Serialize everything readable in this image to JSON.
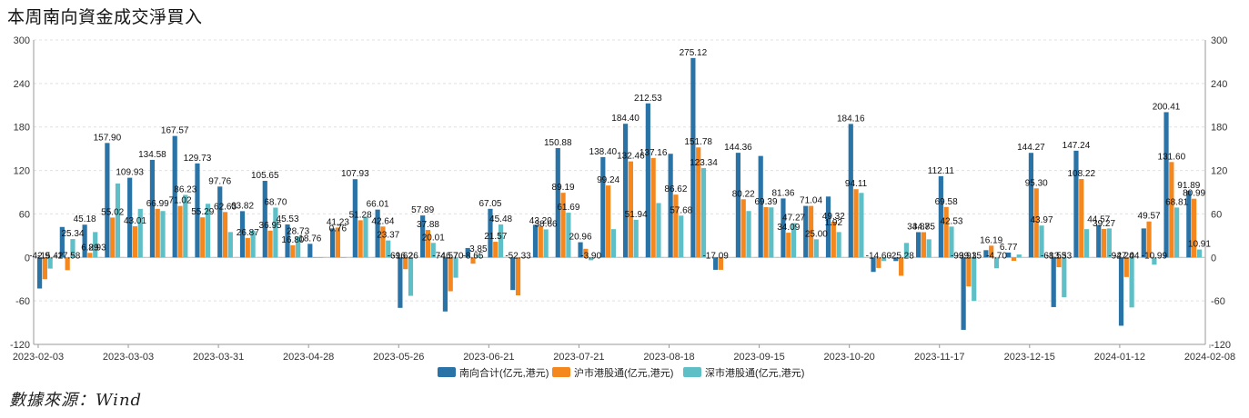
{
  "title": "本周南向資金成交淨買入",
  "source": "數據來源：Wind",
  "colors": {
    "south_total": "#2a73a6",
    "sh_connect": "#f5871f",
    "sz_connect": "#5ec0c6"
  },
  "chart_data": {
    "type": "bar",
    "title": "本周南向資金成交淨買入",
    "ylim": [
      -120,
      300
    ],
    "yticks": [
      -120,
      -60,
      0,
      60,
      120,
      180,
      240,
      300
    ],
    "grid": true,
    "legend_position": "bottom",
    "xtick_labels": [
      "2023-02-03",
      "2023-03-03",
      "2023-03-31",
      "2023-04-28",
      "2023-05-26",
      "2023-06-21",
      "2023-07-21",
      "2023-08-18",
      "2023-09-15",
      "2023-10-20",
      "2023-11-17",
      "2023-12-15",
      "2024-01-12",
      "2024-02-08"
    ],
    "xtick_index": [
      0,
      4,
      8,
      12,
      16,
      20,
      24,
      28,
      32,
      36,
      40,
      44,
      48,
      52
    ],
    "series": [
      {
        "name": "南向合计(亿元,港元)",
        "color": "#2a73a6",
        "values": [
          -42.9,
          42.0,
          45.18,
          157.9,
          109.93,
          134.58,
          167.57,
          129.73,
          97.76,
          63.82,
          105.65,
          45.53,
          18.76,
          40.0,
          107.93,
          66.01,
          -69.62,
          57.89,
          -74.57,
          13.0,
          67.05,
          -45.0,
          45.0,
          150.88,
          20.96,
          138.4,
          184.4,
          212.53,
          143.0,
          275.12,
          -17.09,
          144.36,
          140.0,
          81.36,
          71.04,
          84.0,
          184.16,
          -20.0,
          -5.0,
          34.87,
          112.11,
          -99.91,
          10.0,
          6.77,
          144.27,
          -68.53,
          147.24,
          44.57,
          -94.24,
          40.0,
          200.41,
          91.89
        ]
      },
      {
        "name": "沪市港股通(亿元,港元)",
        "color": "#f5871f",
        "values": [
          -30.0,
          -17.58,
          6.29,
          55.02,
          43.01,
          66.99,
          71.02,
          55.29,
          62.63,
          26.87,
          36.95,
          16.8,
          0.0,
          41.23,
          51.28,
          42.64,
          -16.26,
          37.88,
          -46.7,
          -8.65,
          21.57,
          -52.33,
          43.2,
          89.19,
          11.9,
          99.24,
          132.46,
          137.16,
          86.62,
          151.78,
          -17.09,
          80.22,
          69.39,
          34.09,
          71.04,
          49.32,
          94.11,
          -14.6,
          -25.28,
          34.85,
          69.58,
          -40.0,
          16.19,
          -4.7,
          95.3,
          -13.53,
          108.22,
          39.27,
          -27.04,
          49.57,
          131.6,
          80.99
        ]
      },
      {
        "name": "深市港股通(亿元,港元)",
        "color": "#5ec0c6",
        "values": [
          -15.42,
          25.34,
          35.0,
          102.0,
          66.99,
          64.0,
          86.23,
          74.0,
          35.0,
          37.0,
          68.7,
          28.73,
          0.0,
          0.0,
          56.0,
          23.37,
          -53.0,
          20.01,
          -28.0,
          3.85,
          45.48,
          0.0,
          38.66,
          61.69,
          -3.9,
          39.0,
          51.94,
          75.0,
          57.68,
          123.34,
          0.0,
          64.0,
          69.0,
          47.27,
          25.0,
          35.0,
          89.0,
          -5.0,
          20.0,
          25.0,
          42.53,
          -60.0,
          -15.0,
          4.0,
          43.97,
          -55.0,
          39.0,
          40.0,
          -69.0,
          -10.0,
          68.81,
          10.91
        ]
      }
    ],
    "data_labels": [
      {
        "s": 0,
        "i": 0,
        "text": "-42.9"
      },
      {
        "s": 2,
        "i": 0,
        "text": "-15.42"
      },
      {
        "s": 1,
        "i": 1,
        "text": "-17.58"
      },
      {
        "s": 2,
        "i": 1,
        "text": "25.34"
      },
      {
        "s": 1,
        "i": 2,
        "text": "6.29"
      },
      {
        "s": 0,
        "i": 2,
        "text": "45.18"
      },
      {
        "s": 1,
        "i": 2,
        "text": "8.93",
        "dx": 8
      },
      {
        "s": 0,
        "i": 3,
        "text": "157.90"
      },
      {
        "s": 1,
        "i": 3,
        "text": "55.02"
      },
      {
        "s": 0,
        "i": 4,
        "text": "109.93"
      },
      {
        "s": 1,
        "i": 4,
        "text": "43.01"
      },
      {
        "s": 0,
        "i": 5,
        "text": "134.58"
      },
      {
        "s": 1,
        "i": 5,
        "text": "66.99"
      },
      {
        "s": 0,
        "i": 6,
        "text": "167.57"
      },
      {
        "s": 1,
        "i": 6,
        "text": "71.02"
      },
      {
        "s": 2,
        "i": 6,
        "text": "86.23"
      },
      {
        "s": 0,
        "i": 7,
        "text": "129.73"
      },
      {
        "s": 1,
        "i": 7,
        "text": "55.29"
      },
      {
        "s": 0,
        "i": 8,
        "text": "97.76"
      },
      {
        "s": 1,
        "i": 8,
        "text": "62.63"
      },
      {
        "s": 0,
        "i": 9,
        "text": "63.82"
      },
      {
        "s": 1,
        "i": 9,
        "text": "26.87"
      },
      {
        "s": 0,
        "i": 10,
        "text": "105.65"
      },
      {
        "s": 1,
        "i": 10,
        "text": "36.95"
      },
      {
        "s": 2,
        "i": 10,
        "text": "68.70"
      },
      {
        "s": 0,
        "i": 11,
        "text": "45.53"
      },
      {
        "s": 1,
        "i": 11,
        "text": "16.80"
      },
      {
        "s": 2,
        "i": 11,
        "text": "28.73"
      },
      {
        "s": 0,
        "i": 12,
        "text": "18.76"
      },
      {
        "s": 1,
        "i": 13,
        "text": "41.23"
      },
      {
        "s": 1,
        "i": 13,
        "text": "0.76",
        "below": true
      },
      {
        "s": 0,
        "i": 14,
        "text": "107.93"
      },
      {
        "s": 1,
        "i": 14,
        "text": "51.28"
      },
      {
        "s": 0,
        "i": 15,
        "text": "66.01"
      },
      {
        "s": 1,
        "i": 15,
        "text": "42.64"
      },
      {
        "s": 2,
        "i": 15,
        "text": "23.37"
      },
      {
        "s": 0,
        "i": 16,
        "text": "-69.62"
      },
      {
        "s": 1,
        "i": 16,
        "text": "-16.26"
      },
      {
        "s": 0,
        "i": 17,
        "text": "57.89"
      },
      {
        "s": 1,
        "i": 17,
        "text": "37.88"
      },
      {
        "s": 2,
        "i": 17,
        "text": "20.01"
      },
      {
        "s": 0,
        "i": 18,
        "text": "-74.57"
      },
      {
        "s": 1,
        "i": 18,
        "text": "-46.70"
      },
      {
        "s": 2,
        "i": 19,
        "text": "3.85"
      },
      {
        "s": 1,
        "i": 19,
        "text": "-8.65"
      },
      {
        "s": 0,
        "i": 20,
        "text": "67.05"
      },
      {
        "s": 1,
        "i": 20,
        "text": "21.57"
      },
      {
        "s": 2,
        "i": 20,
        "text": "45.48"
      },
      {
        "s": 1,
        "i": 21,
        "text": "-52.33"
      },
      {
        "s": 1,
        "i": 22,
        "text": "43.20"
      },
      {
        "s": 2,
        "i": 22,
        "text": "38.66"
      },
      {
        "s": 0,
        "i": 23,
        "text": "150.88"
      },
      {
        "s": 1,
        "i": 23,
        "text": "89.19"
      },
      {
        "s": 2,
        "i": 23,
        "text": "61.69"
      },
      {
        "s": 0,
        "i": 24,
        "text": "20.96"
      },
      {
        "s": 2,
        "i": 24,
        "text": "-3.90"
      },
      {
        "s": 0,
        "i": 25,
        "text": "138.40"
      },
      {
        "s": 1,
        "i": 25,
        "text": "99.24"
      },
      {
        "s": 0,
        "i": 26,
        "text": "184.40"
      },
      {
        "s": 1,
        "i": 26,
        "text": "132.46"
      },
      {
        "s": 2,
        "i": 26,
        "text": "51.94"
      },
      {
        "s": 0,
        "i": 27,
        "text": "212.53"
      },
      {
        "s": 1,
        "i": 27,
        "text": "137.16"
      },
      {
        "s": 1,
        "i": 28,
        "text": "86.62"
      },
      {
        "s": 2,
        "i": 28,
        "text": "57.68"
      },
      {
        "s": 0,
        "i": 29,
        "text": "275.12"
      },
      {
        "s": 1,
        "i": 29,
        "text": "151.78"
      },
      {
        "s": 2,
        "i": 29,
        "text": "123.34"
      },
      {
        "s": 0,
        "i": 30,
        "text": "-17.09"
      },
      {
        "s": 0,
        "i": 31,
        "text": "144.36"
      },
      {
        "s": 1,
        "i": 31,
        "text": "80.22"
      },
      {
        "s": 1,
        "i": 32,
        "text": "69.39"
      },
      {
        "s": 0,
        "i": 33,
        "text": "81.36"
      },
      {
        "s": 1,
        "i": 33,
        "text": "34.09"
      },
      {
        "s": 2,
        "i": 33,
        "text": "47.27"
      },
      {
        "s": 2,
        "i": 34,
        "text": "25.00"
      },
      {
        "s": 1,
        "i": 34,
        "text": "71.04"
      },
      {
        "s": 1,
        "i": 35,
        "text": "49.32"
      },
      {
        "s": 1,
        "i": 35,
        "text": "1.92",
        "below": true
      },
      {
        "s": 0,
        "i": 36,
        "text": "184.16"
      },
      {
        "s": 1,
        "i": 36,
        "text": "94.11"
      },
      {
        "s": 1,
        "i": 37,
        "text": "-14.60"
      },
      {
        "s": 1,
        "i": 38,
        "text": "-25.28"
      },
      {
        "s": 0,
        "i": 39,
        "text": "34.87"
      },
      {
        "s": 1,
        "i": 39,
        "text": "34.85"
      },
      {
        "s": 0,
        "i": 40,
        "text": "112.11"
      },
      {
        "s": 1,
        "i": 40,
        "text": "69.58"
      },
      {
        "s": 2,
        "i": 40,
        "text": "42.53"
      },
      {
        "s": 0,
        "i": 41,
        "text": "-99.91"
      },
      {
        "s": 1,
        "i": 41,
        "text": "-39.35"
      },
      {
        "s": 1,
        "i": 42,
        "text": "16.19"
      },
      {
        "s": 2,
        "i": 42,
        "text": "-4.70"
      },
      {
        "s": 0,
        "i": 43,
        "text": "6.77"
      },
      {
        "s": 0,
        "i": 44,
        "text": "144.27"
      },
      {
        "s": 1,
        "i": 44,
        "text": "95.30"
      },
      {
        "s": 2,
        "i": 44,
        "text": "43.97"
      },
      {
        "s": 0,
        "i": 45,
        "text": "-68.53"
      },
      {
        "s": 1,
        "i": 45,
        "text": "-13.53"
      },
      {
        "s": 0,
        "i": 46,
        "text": "147.24"
      },
      {
        "s": 1,
        "i": 46,
        "text": "108.22"
      },
      {
        "s": 0,
        "i": 47,
        "text": "44.57"
      },
      {
        "s": 1,
        "i": 47,
        "text": "39.27"
      },
      {
        "s": 0,
        "i": 48,
        "text": "-94.24"
      },
      {
        "s": 1,
        "i": 48,
        "text": "-27.04"
      },
      {
        "s": 2,
        "i": 49,
        "text": "-10.99"
      },
      {
        "s": 1,
        "i": 49,
        "text": "49.57"
      },
      {
        "s": 0,
        "i": 50,
        "text": "200.41"
      },
      {
        "s": 1,
        "i": 50,
        "text": "131.60"
      },
      {
        "s": 2,
        "i": 50,
        "text": "68.81"
      },
      {
        "s": 0,
        "i": 51,
        "text": "91.89"
      },
      {
        "s": 1,
        "i": 51,
        "text": "80.99"
      },
      {
        "s": 2,
        "i": 51,
        "text": "10.91"
      }
    ]
  }
}
